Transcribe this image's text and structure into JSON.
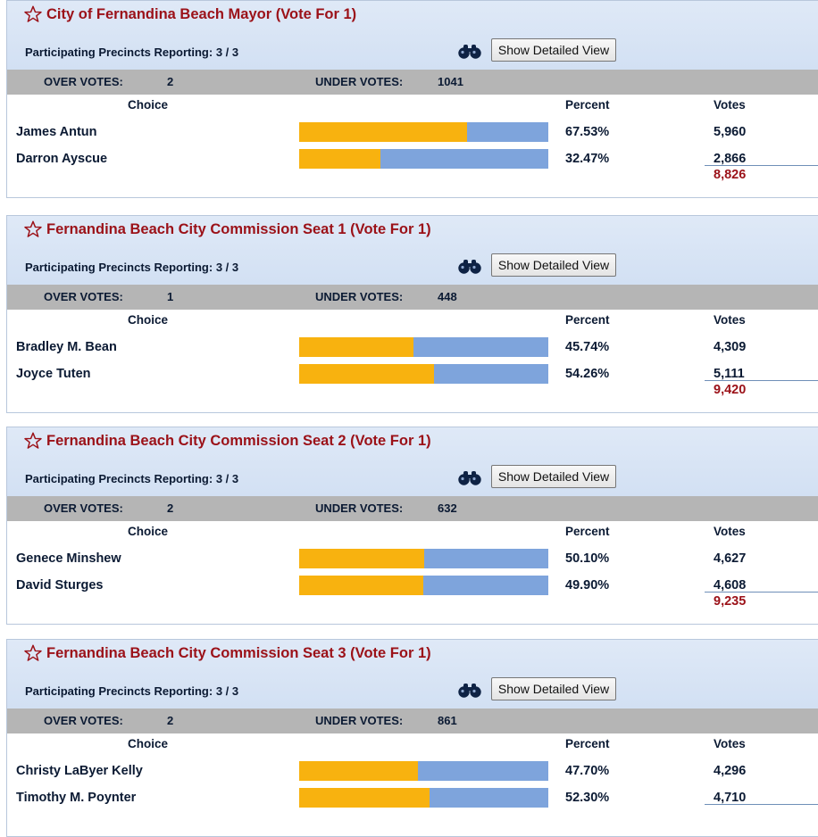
{
  "ui": {
    "button_label": "Show Detailed View",
    "precinct_label": "Participating Precincts Reporting:",
    "over_label": "OVER VOTES:",
    "under_label": "UNDER VOTES:",
    "col_choice": "Choice",
    "col_percent": "Percent",
    "col_votes": "Votes",
    "colors": {
      "title": "#9b1118",
      "bar_fill": "#f8b20f",
      "bar_bg": "#7ea4dc",
      "header_bg": "#d2e0f3",
      "overbar_bg": "#b5b5b5"
    },
    "icons": {
      "favorite": "star-outline-icon",
      "detail": "binoculars-icon"
    }
  },
  "contests": [
    {
      "title": "City of Fernandina Beach Mayor (Vote For 1)",
      "precincts": "3 / 3",
      "over_votes": "2",
      "under_votes": "1041",
      "candidates": [
        {
          "name": "James Antun",
          "percent": "67.53%",
          "share": 0.6753,
          "votes": "5,960"
        },
        {
          "name": "Darron Ayscue",
          "percent": "32.47%",
          "share": 0.3247,
          "votes": "2,866"
        }
      ],
      "total": "8,826"
    },
    {
      "title": "Fernandina Beach City Commission Seat 1 (Vote For 1)",
      "precincts": "3 / 3",
      "over_votes": "1",
      "under_votes": "448",
      "candidates": [
        {
          "name": "Bradley M. Bean",
          "percent": "45.74%",
          "share": 0.4574,
          "votes": "4,309"
        },
        {
          "name": "Joyce Tuten",
          "percent": "54.26%",
          "share": 0.5426,
          "votes": "5,111"
        }
      ],
      "total": "9,420"
    },
    {
      "title": "Fernandina Beach City Commission Seat 2 (Vote For 1)",
      "precincts": "3 / 3",
      "over_votes": "2",
      "under_votes": "632",
      "candidates": [
        {
          "name": "Genece Minshew",
          "percent": "50.10%",
          "share": 0.501,
          "votes": "4,627"
        },
        {
          "name": "David Sturges",
          "percent": "49.90%",
          "share": 0.499,
          "votes": "4,608"
        }
      ],
      "total": "9,235"
    },
    {
      "title": "Fernandina Beach City Commission Seat 3 (Vote For 1)",
      "precincts": "3 / 3",
      "over_votes": "2",
      "under_votes": "861",
      "candidates": [
        {
          "name": "Christy LaByer Kelly",
          "percent": "47.70%",
          "share": 0.477,
          "votes": "4,296"
        },
        {
          "name": "Timothy M. Poynter",
          "percent": "52.30%",
          "share": 0.523,
          "votes": "4,710"
        }
      ],
      "total": ""
    }
  ]
}
